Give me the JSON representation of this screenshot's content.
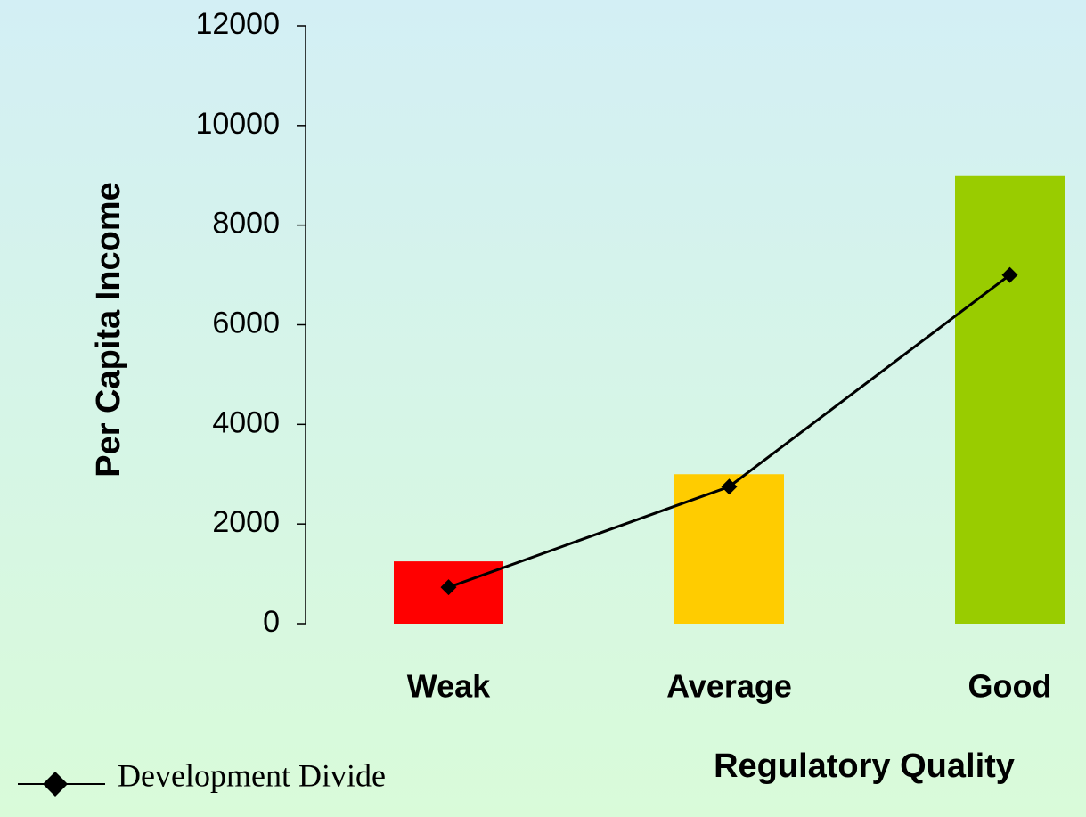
{
  "chart_data": {
    "type": "bar",
    "y_label": "Per Capita Income",
    "x_label": "Regulatory Quality",
    "categories": [
      "Weak",
      "Average",
      "Good"
    ],
    "values": [
      1250,
      3000,
      9000
    ],
    "colors": [
      "#ff0000",
      "#ffcc00",
      "#99cc00"
    ],
    "series": [
      {
        "name": "Development Divide",
        "color": "#000000",
        "values": [
          730,
          2750,
          7000
        ]
      }
    ],
    "ylim": [
      0,
      12000
    ],
    "yticks": [
      0,
      2000,
      4000,
      6000,
      8000,
      10000,
      12000
    ],
    "legend": "bottom-left"
  }
}
